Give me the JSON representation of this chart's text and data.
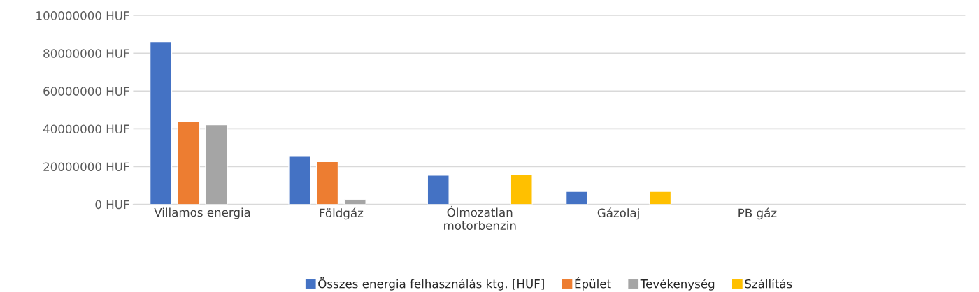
{
  "chart_data": {
    "type": "bar",
    "categories": [
      "Villamos energia",
      "Földgáz",
      "Ólmozatlan\nmotorbenzin",
      "Gázolaj",
      "PB gáz",
      null
    ],
    "series": [
      {
        "name": "Összes energia felhasználás ktg. [HUF]",
        "color": "#4472c4",
        "values": [
          86200000,
          25400000,
          15500000,
          6900000,
          null,
          null
        ]
      },
      {
        "name": "Épület",
        "color": "#ed7d31",
        "values": [
          43800000,
          22700000,
          null,
          null,
          null,
          null
        ]
      },
      {
        "name": "Tevékenység",
        "color": "#a5a5a5",
        "values": [
          42200000,
          2500000,
          null,
          null,
          null,
          null
        ]
      },
      {
        "name": "Szállítás",
        "color": "#ffc000",
        "values": [
          null,
          null,
          15600000,
          6900000,
          null,
          null
        ]
      }
    ],
    "ylim": [
      0,
      100000000
    ],
    "yticks": [
      {
        "value": 0,
        "label": "0 HUF"
      },
      {
        "value": 20000000,
        "label": "20000000 HUF"
      },
      {
        "value": 40000000,
        "label": "40000000 HUF"
      },
      {
        "value": 60000000,
        "label": "60000000 HUF"
      },
      {
        "value": 80000000,
        "label": "80000000 HUF"
      },
      {
        "value": 100000000,
        "label": "100000000 HUF"
      }
    ],
    "grid": "y",
    "legend": "bottom"
  }
}
